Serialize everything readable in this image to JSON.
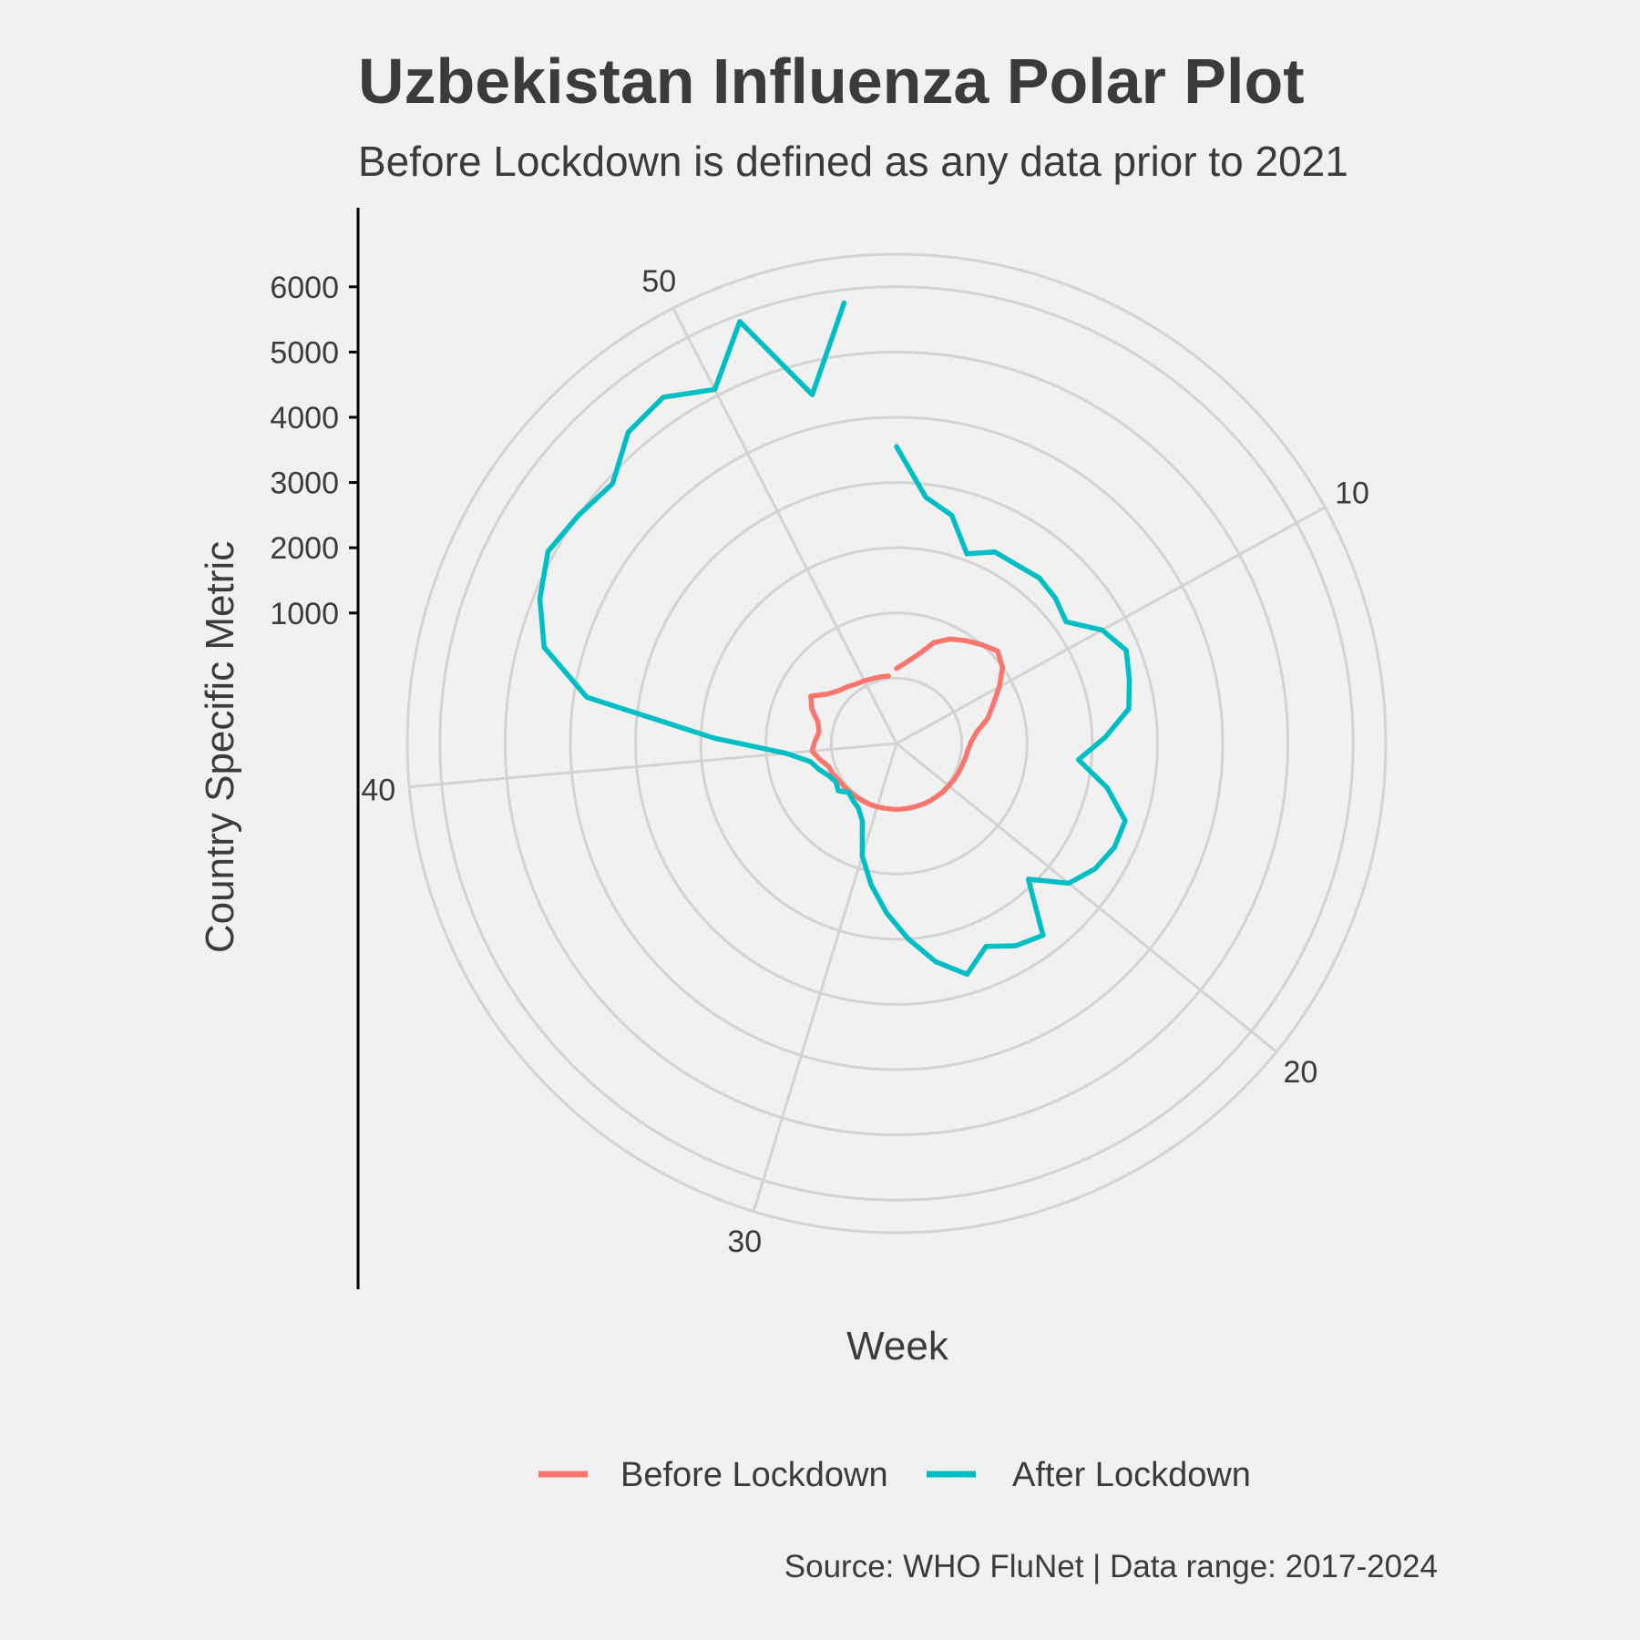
{
  "chart_data": {
    "type": "line",
    "coordinate_system": "polar",
    "title": "Uzbekistan Influenza Polar Plot",
    "subtitle": "Before Lockdown is defined as any data prior to 2021",
    "caption": "Source: WHO FluNet | Data range: 2017-2024",
    "xlabel": "Week",
    "ylabel": "Country Specific Metric",
    "angle_ticks": [
      "10",
      "20",
      "30",
      "40",
      "50"
    ],
    "radius_ticks": [
      "1000",
      "2000",
      "3000",
      "4000",
      "5000",
      "6000"
    ],
    "radius_range": [
      -1000,
      6500
    ],
    "week_range": [
      1,
      53
    ],
    "legend_position": "bottom",
    "grid": true,
    "series": [
      {
        "name": "Before Lockdown",
        "color": "#F8766D",
        "points": [
          [
            1,
            150
          ],
          [
            2,
            250
          ],
          [
            3,
            400
          ],
          [
            4,
            650
          ],
          [
            5,
            800
          ],
          [
            6,
            900
          ],
          [
            7,
            1000
          ],
          [
            8,
            1100
          ],
          [
            9,
            1000
          ],
          [
            10,
            800
          ],
          [
            11,
            600
          ],
          [
            12,
            450
          ],
          [
            13,
            250
          ],
          [
            14,
            150
          ],
          [
            15,
            100
          ],
          [
            16,
            80
          ],
          [
            17,
            60
          ],
          [
            18,
            50
          ],
          [
            19,
            40
          ],
          [
            20,
            30
          ],
          [
            21,
            30
          ],
          [
            22,
            20
          ],
          [
            23,
            20
          ],
          [
            24,
            15
          ],
          [
            25,
            10
          ],
          [
            26,
            10
          ],
          [
            27,
            10
          ],
          [
            28,
            10
          ],
          [
            29,
            10
          ],
          [
            30,
            15
          ],
          [
            31,
            20
          ],
          [
            32,
            20
          ],
          [
            33,
            25
          ],
          [
            34,
            30
          ],
          [
            35,
            40
          ],
          [
            36,
            50
          ],
          [
            37,
            80
          ],
          [
            38,
            100
          ],
          [
            39,
            200
          ],
          [
            40,
            300
          ],
          [
            41,
            250
          ],
          [
            42,
            200
          ],
          [
            43,
            250
          ],
          [
            44,
            400
          ],
          [
            45,
            500
          ],
          [
            46,
            300
          ],
          [
            47,
            200
          ],
          [
            48,
            150
          ],
          [
            49,
            100
          ],
          [
            50,
            80
          ],
          [
            51,
            60
          ],
          [
            52,
            50
          ],
          [
            53,
            40
          ]
        ]
      },
      {
        "name": "After Lockdown",
        "color": "#00BFC4",
        "points": [
          [
            1,
            3550
          ],
          [
            2,
            2800
          ],
          [
            3,
            2600
          ],
          [
            4,
            2100
          ],
          [
            5,
            2300
          ],
          [
            6,
            2300
          ],
          [
            7,
            2350
          ],
          [
            8,
            2300
          ],
          [
            9,
            2200
          ],
          [
            10,
            2600
          ],
          [
            11,
            2800
          ],
          [
            12,
            2700
          ],
          [
            13,
            2600
          ],
          [
            14,
            2200
          ],
          [
            15,
            1800
          ],
          [
            16,
            2300
          ],
          [
            17,
            2700
          ],
          [
            18,
            2700
          ],
          [
            19,
            2600
          ],
          [
            20,
            2400
          ],
          [
            21,
            1900
          ],
          [
            22,
            2700
          ],
          [
            23,
            2600
          ],
          [
            24,
            2400
          ],
          [
            25,
            2700
          ],
          [
            26,
            2400
          ],
          [
            27,
            2000
          ],
          [
            28,
            1600
          ],
          [
            29,
            1200
          ],
          [
            30,
            800
          ],
          [
            31,
            300
          ],
          [
            32,
            150
          ],
          [
            33,
            100
          ],
          [
            34,
            50
          ],
          [
            35,
            150
          ],
          [
            36,
            100
          ],
          [
            37,
            150
          ],
          [
            38,
            250
          ],
          [
            39,
            350
          ],
          [
            40,
            700
          ],
          [
            41,
            1800
          ],
          [
            42,
            3800
          ],
          [
            43,
            4600
          ],
          [
            44,
            4900
          ],
          [
            45,
            5100
          ],
          [
            46,
            5000
          ],
          [
            47,
            4900
          ],
          [
            48,
            5300
          ],
          [
            49,
            5400
          ],
          [
            50,
            5100
          ],
          [
            51,
            5900
          ],
          [
            52,
            4500
          ],
          [
            53,
            5800
          ]
        ]
      }
    ]
  }
}
